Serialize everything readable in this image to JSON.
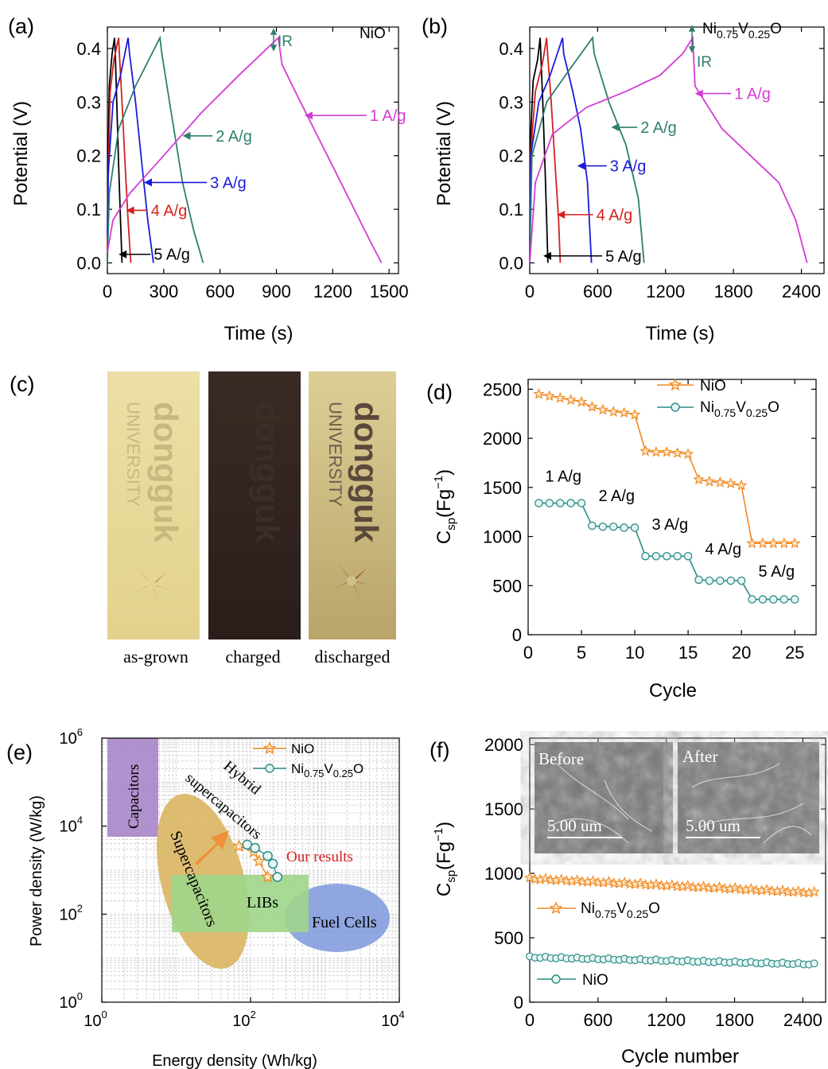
{
  "colors": {
    "black": "#000000",
    "red": "#d42020",
    "blue": "#1b1bd8",
    "teal": "#2f7f6e",
    "magenta": "#d43cd4",
    "orange": "#f08a22",
    "teal_marker": "#2a8c86",
    "annot_red": "#d42020",
    "capacitors": "#a27fc6",
    "supercaps": "#d8b15a",
    "libs": "#9ed58a",
    "fuelcells": "#7d98dc",
    "arrow": "#f0903a"
  },
  "chart_data": [
    {
      "id": "a",
      "panel_label": "(a)",
      "type": "line",
      "xlabel": "Time (s)",
      "ylabel": "Potential (V)",
      "xlim": [
        0,
        1550
      ],
      "ylim": [
        -0.02,
        0.44
      ],
      "xticks": [
        0,
        300,
        600,
        900,
        1200,
        1500
      ],
      "yticks": [
        0.0,
        0.1,
        0.2,
        0.3,
        0.4
      ],
      "yticklabels": [
        "0.0",
        "0.1",
        "0.2",
        "0.3",
        "0.4"
      ],
      "sample_label": "NiO",
      "ir_label": "IR",
      "series": [
        {
          "label": "5 A/g",
          "color_key": "black",
          "x": [
            0,
            2,
            10,
            25,
            38,
            41,
            50,
            60,
            70,
            78
          ],
          "y": [
            0.0,
            0.15,
            0.33,
            0.39,
            0.42,
            0.4,
            0.3,
            0.18,
            0.08,
            0.0
          ]
        },
        {
          "label": "4 A/g",
          "color_key": "red",
          "x": [
            0,
            3,
            15,
            35,
            60,
            64,
            78,
            95,
            110,
            125
          ],
          "y": [
            0.0,
            0.13,
            0.32,
            0.38,
            0.42,
            0.39,
            0.3,
            0.18,
            0.08,
            0.0
          ]
        },
        {
          "label": "3 A/g",
          "color_key": "blue",
          "x": [
            0,
            5,
            30,
            70,
            110,
            118,
            150,
            185,
            215,
            245
          ],
          "y": [
            0.05,
            0.17,
            0.3,
            0.35,
            0.42,
            0.39,
            0.3,
            0.18,
            0.08,
            0.0
          ]
        },
        {
          "label": "2 A/g",
          "color_key": "teal",
          "x": [
            0,
            10,
            60,
            150,
            280,
            290,
            340,
            400,
            460,
            510
          ],
          "y": [
            0.0,
            0.13,
            0.25,
            0.33,
            0.42,
            0.39,
            0.28,
            0.15,
            0.06,
            0.0
          ]
        },
        {
          "label": "1 A/g",
          "color_key": "magenta",
          "x": [
            0,
            30,
            120,
            300,
            500,
            700,
            910,
            930,
            1000,
            1100,
            1200,
            1300,
            1400,
            1460
          ],
          "y": [
            0.02,
            0.08,
            0.13,
            0.2,
            0.28,
            0.35,
            0.42,
            0.37,
            0.32,
            0.25,
            0.18,
            0.11,
            0.04,
            0.0
          ]
        }
      ],
      "annotations": [
        {
          "text": "1 A/g",
          "color_key": "magenta",
          "tip": [
            1050,
            0.275
          ],
          "tail": [
            1380,
            0.275
          ]
        },
        {
          "text": "2 A/g",
          "color_key": "teal",
          "tip": [
            400,
            0.237
          ],
          "tail": [
            560,
            0.237
          ]
        },
        {
          "text": "3 A/g",
          "color_key": "blue",
          "tip": [
            195,
            0.15
          ],
          "tail": [
            530,
            0.15
          ]
        },
        {
          "text": "4 A/g",
          "color_key": "red",
          "tip": [
            100,
            0.098
          ],
          "tail": [
            215,
            0.098
          ]
        },
        {
          "text": "5 A/g",
          "color_key": "black",
          "tip": [
            60,
            0.016
          ],
          "tail": [
            230,
            0.016
          ]
        }
      ]
    },
    {
      "id": "b",
      "panel_label": "(b)",
      "type": "line",
      "xlabel": "Time (s)",
      "ylabel": "Potential (V)",
      "xlim": [
        0,
        2600
      ],
      "ylim": [
        -0.02,
        0.44
      ],
      "xticks": [
        0,
        600,
        1200,
        1800,
        2400
      ],
      "yticks": [
        0.0,
        0.1,
        0.2,
        0.3,
        0.4
      ],
      "yticklabels": [
        "0.0",
        "0.1",
        "0.2",
        "0.3",
        "0.4"
      ],
      "sample_label": "Ni0.75V0.25O",
      "ir_label": "IR",
      "series": [
        {
          "label": "5 A/g",
          "color_key": "black",
          "x": [
            0,
            5,
            30,
            70,
            92,
            98,
            115,
            135,
            150,
            160
          ],
          "y": [
            0.0,
            0.22,
            0.34,
            0.38,
            0.42,
            0.39,
            0.3,
            0.18,
            0.08,
            0.0
          ]
        },
        {
          "label": "4 A/g",
          "color_key": "red",
          "x": [
            0,
            8,
            50,
            110,
            150,
            158,
            190,
            225,
            255,
            270
          ],
          "y": [
            0.0,
            0.2,
            0.32,
            0.37,
            0.42,
            0.39,
            0.3,
            0.18,
            0.08,
            0.0
          ]
        },
        {
          "label": "3 A/g",
          "color_key": "blue",
          "x": [
            0,
            10,
            80,
            180,
            290,
            300,
            380,
            450,
            510,
            545
          ],
          "y": [
            0.0,
            0.2,
            0.3,
            0.35,
            0.42,
            0.39,
            0.32,
            0.25,
            0.15,
            0.0
          ]
        },
        {
          "label": "2 A/g",
          "color_key": "teal",
          "x": [
            0,
            20,
            150,
            350,
            555,
            570,
            700,
            850,
            960,
            1010
          ],
          "y": [
            0.0,
            0.2,
            0.3,
            0.36,
            0.42,
            0.39,
            0.3,
            0.22,
            0.12,
            0.0
          ]
        },
        {
          "label": "1 A/g",
          "color_key": "magenta",
          "x": [
            0,
            50,
            200,
            500,
            850,
            1150,
            1350,
            1440,
            1460,
            1700,
            1950,
            2200,
            2350,
            2450
          ],
          "y": [
            0.0,
            0.15,
            0.24,
            0.29,
            0.32,
            0.35,
            0.39,
            0.42,
            0.33,
            0.25,
            0.2,
            0.15,
            0.08,
            0.0
          ]
        }
      ],
      "annotations": [
        {
          "text": "1 A/g",
          "color_key": "magenta",
          "tip": [
            1460,
            0.316
          ],
          "tail": [
            1780,
            0.316
          ]
        },
        {
          "text": "2 A/g",
          "color_key": "teal",
          "tip": [
            720,
            0.253
          ],
          "tail": [
            950,
            0.253
          ]
        },
        {
          "text": "3 A/g",
          "color_key": "blue",
          "tip": [
            420,
            0.181
          ],
          "tail": [
            680,
            0.181
          ]
        },
        {
          "text": "4 A/g",
          "color_key": "red",
          "tip": [
            240,
            0.09
          ],
          "tail": [
            560,
            0.09
          ]
        },
        {
          "text": "5 A/g",
          "color_key": "black",
          "tip": [
            120,
            0.013
          ],
          "tail": [
            640,
            0.013
          ]
        }
      ]
    },
    {
      "id": "d",
      "panel_label": "(d)",
      "type": "line",
      "xlabel": "Cycle",
      "ylabel": "Csp(Fg−1)",
      "xlim": [
        0,
        27
      ],
      "ylim": [
        0,
        2600
      ],
      "xticks": [
        0,
        5,
        10,
        15,
        20,
        25
      ],
      "yticks": [
        0,
        500,
        1000,
        1500,
        2000,
        2500
      ],
      "series": [
        {
          "name": "NiO",
          "marker": "star",
          "color_key": "orange",
          "x": [
            1,
            2,
            3,
            4,
            5,
            6,
            7,
            8,
            9,
            10,
            11,
            12,
            13,
            14,
            15,
            16,
            17,
            18,
            19,
            20,
            21,
            22,
            23,
            24,
            25
          ],
          "y": [
            2450,
            2430,
            2410,
            2390,
            2370,
            2320,
            2290,
            2270,
            2260,
            2240,
            1870,
            1860,
            1860,
            1850,
            1840,
            1580,
            1560,
            1550,
            1540,
            1520,
            930,
            930,
            930,
            930,
            930
          ]
        },
        {
          "name": "Ni0.75V0.25O",
          "marker": "circle",
          "color_key": "teal_marker",
          "x": [
            1,
            2,
            3,
            4,
            5,
            6,
            7,
            8,
            9,
            10,
            11,
            12,
            13,
            14,
            15,
            16,
            17,
            18,
            19,
            20,
            21,
            22,
            23,
            24,
            25
          ],
          "y": [
            1340,
            1340,
            1340,
            1340,
            1340,
            1110,
            1100,
            1100,
            1090,
            1090,
            800,
            800,
            800,
            800,
            800,
            560,
            550,
            550,
            550,
            550,
            360,
            360,
            360,
            360,
            360
          ]
        }
      ],
      "rate_labels": [
        {
          "text": "1 A/g",
          "x": 1,
          "y": 1560
        },
        {
          "text": "2 A/g",
          "x": 6,
          "y": 1360
        },
        {
          "text": "3 A/g",
          "x": 11,
          "y": 1070
        },
        {
          "text": "4 A/g",
          "x": 16,
          "y": 820
        },
        {
          "text": "5 A/g",
          "x": 21,
          "y": 590
        }
      ],
      "legend_position": "top-right"
    },
    {
      "id": "e",
      "panel_label": "(e)",
      "type": "scatter",
      "xlabel": "Energy density (Wh/kg)",
      "ylabel": "Power density (W/kg)",
      "xscale": "log",
      "yscale": "log",
      "xlim": [
        1,
        10000
      ],
      "ylim": [
        1,
        1000000
      ],
      "xticklabels": [
        {
          "base": "10",
          "exp": "0",
          "value": 1
        },
        {
          "base": "10",
          "exp": "2",
          "value": 100
        },
        {
          "base": "10",
          "exp": "4",
          "value": 10000
        }
      ],
      "yticklabels": [
        {
          "base": "10",
          "exp": "0",
          "value": 1
        },
        {
          "base": "10",
          "exp": "2",
          "value": 100
        },
        {
          "base": "10",
          "exp": "4",
          "value": 10000
        },
        {
          "base": "10",
          "exp": "6",
          "value": 1000000
        }
      ],
      "regions": [
        {
          "label": "Capacitors",
          "color_key": "capacitors"
        },
        {
          "label": "Supercapacitors",
          "color_key": "supercaps"
        },
        {
          "label": "LIBs",
          "color_key": "libs"
        },
        {
          "label": "Fuel Cells",
          "color_key": "fuelcells"
        },
        {
          "label": "Hybrid",
          "color_key": "black"
        },
        {
          "label": "supercapacitors",
          "color_key": "black"
        }
      ],
      "results_label": "Our results",
      "series": [
        {
          "name": "NiO",
          "marker": "star",
          "color_key": "orange",
          "x": [
            70,
            110,
            130,
            170
          ],
          "y": [
            3500,
            2600,
            1600,
            700
          ]
        },
        {
          "name": "Ni0.75V0.25O",
          "marker": "circle",
          "color_key": "teal_marker",
          "x": [
            90,
            115,
            170,
            200,
            230
          ],
          "y": [
            3800,
            3200,
            2100,
            1400,
            700
          ]
        }
      ],
      "legend_position": "top-center"
    },
    {
      "id": "f",
      "panel_label": "(f)",
      "type": "line",
      "xlabel": "Cycle number",
      "ylabel": "Csp(Fg−1)",
      "xlim": [
        0,
        2600
      ],
      "ylim": [
        0,
        2050
      ],
      "xticks": [
        0,
        600,
        1200,
        1800,
        2400
      ],
      "yticks": [
        0,
        500,
        1000,
        1500,
        2000
      ],
      "series": [
        {
          "name": "Ni0.75V0.25O",
          "marker": "star",
          "color_key": "orange",
          "start": 960,
          "end": 850,
          "count": 55
        },
        {
          "name": "NiO",
          "marker": "circle",
          "color_key": "teal_marker",
          "start": 350,
          "end": 295,
          "count": 55
        }
      ],
      "insets": [
        {
          "label": "Before",
          "scale": "5.00 um"
        },
        {
          "label": "After",
          "scale": "5.00 um"
        }
      ]
    }
  ],
  "panel_c": {
    "panel_label": "(c)",
    "photos": [
      {
        "caption": "as-grown",
        "logo_text": "dongguk",
        "logo_sub": "UNIVERSITY"
      },
      {
        "caption": "charged",
        "logo_text": "dongguk",
        "logo_sub": ""
      },
      {
        "caption": "discharged",
        "logo_text": "dongguk",
        "logo_sub": "UNIVERSITY"
      }
    ]
  }
}
